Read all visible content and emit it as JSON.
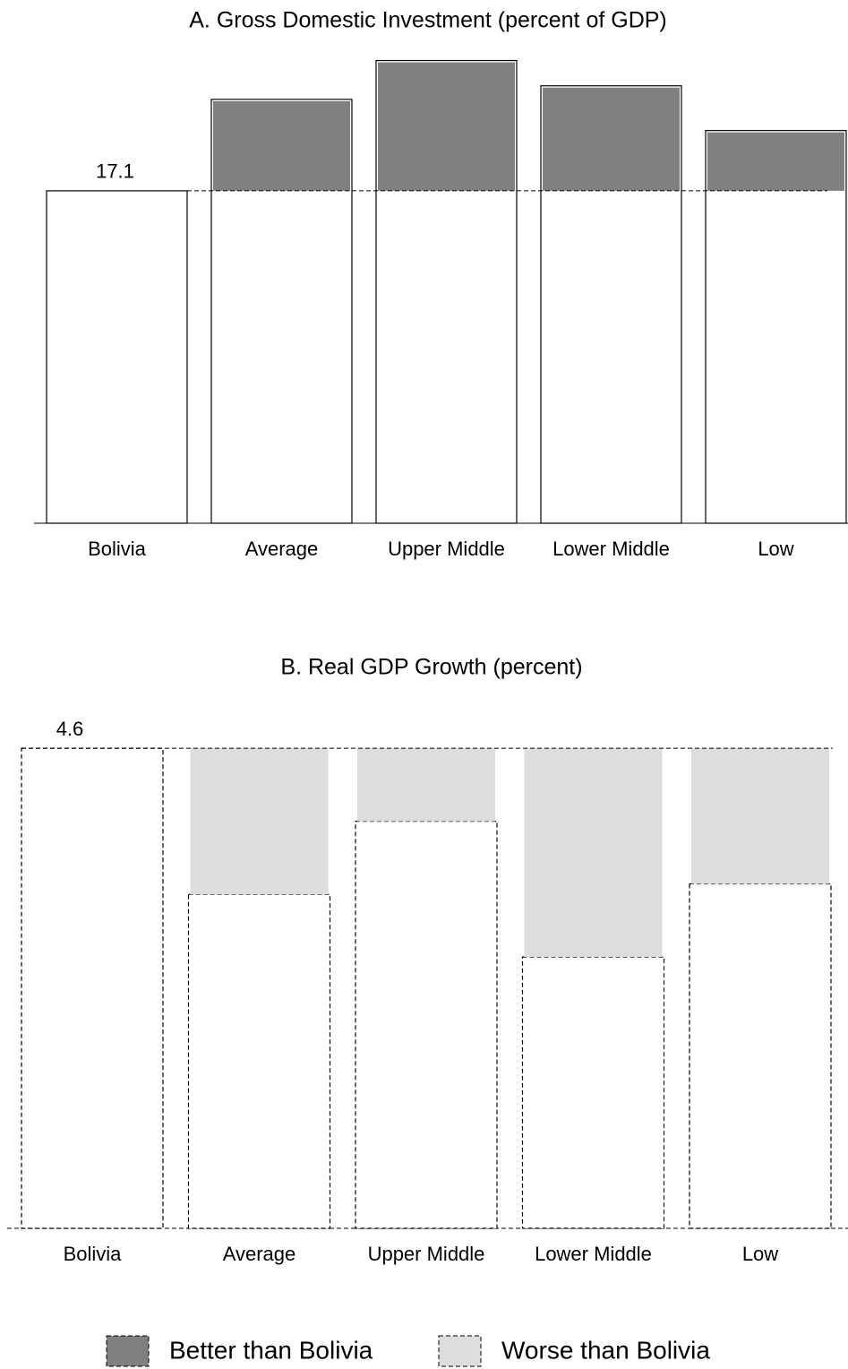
{
  "chart_data": [
    {
      "type": "bar",
      "title": "A. Gross Domestic Investment (percent of GDP)",
      "categories": [
        "Bolivia",
        "Average",
        "Upper Middle",
        "Lower Middle",
        "Low"
      ],
      "values": [
        17.1,
        21.8,
        23.8,
        22.5,
        20.2
      ],
      "line_style": "solid"
    },
    {
      "type": "bar",
      "title": "B. Real GDP Growth (percent)",
      "categories": [
        "Bolivia",
        "Average",
        "Upper Middle",
        "Lower Middle",
        "Low"
      ],
      "values": [
        4.6,
        3.2,
        3.9,
        2.6,
        3.3
      ],
      "line_style": "dashed"
    }
  ],
  "legend": [
    {
      "name": "Better than Bolivia",
      "color": "#808080"
    },
    {
      "name": "Worse than Bolivia",
      "color": "#dddddd"
    }
  ]
}
